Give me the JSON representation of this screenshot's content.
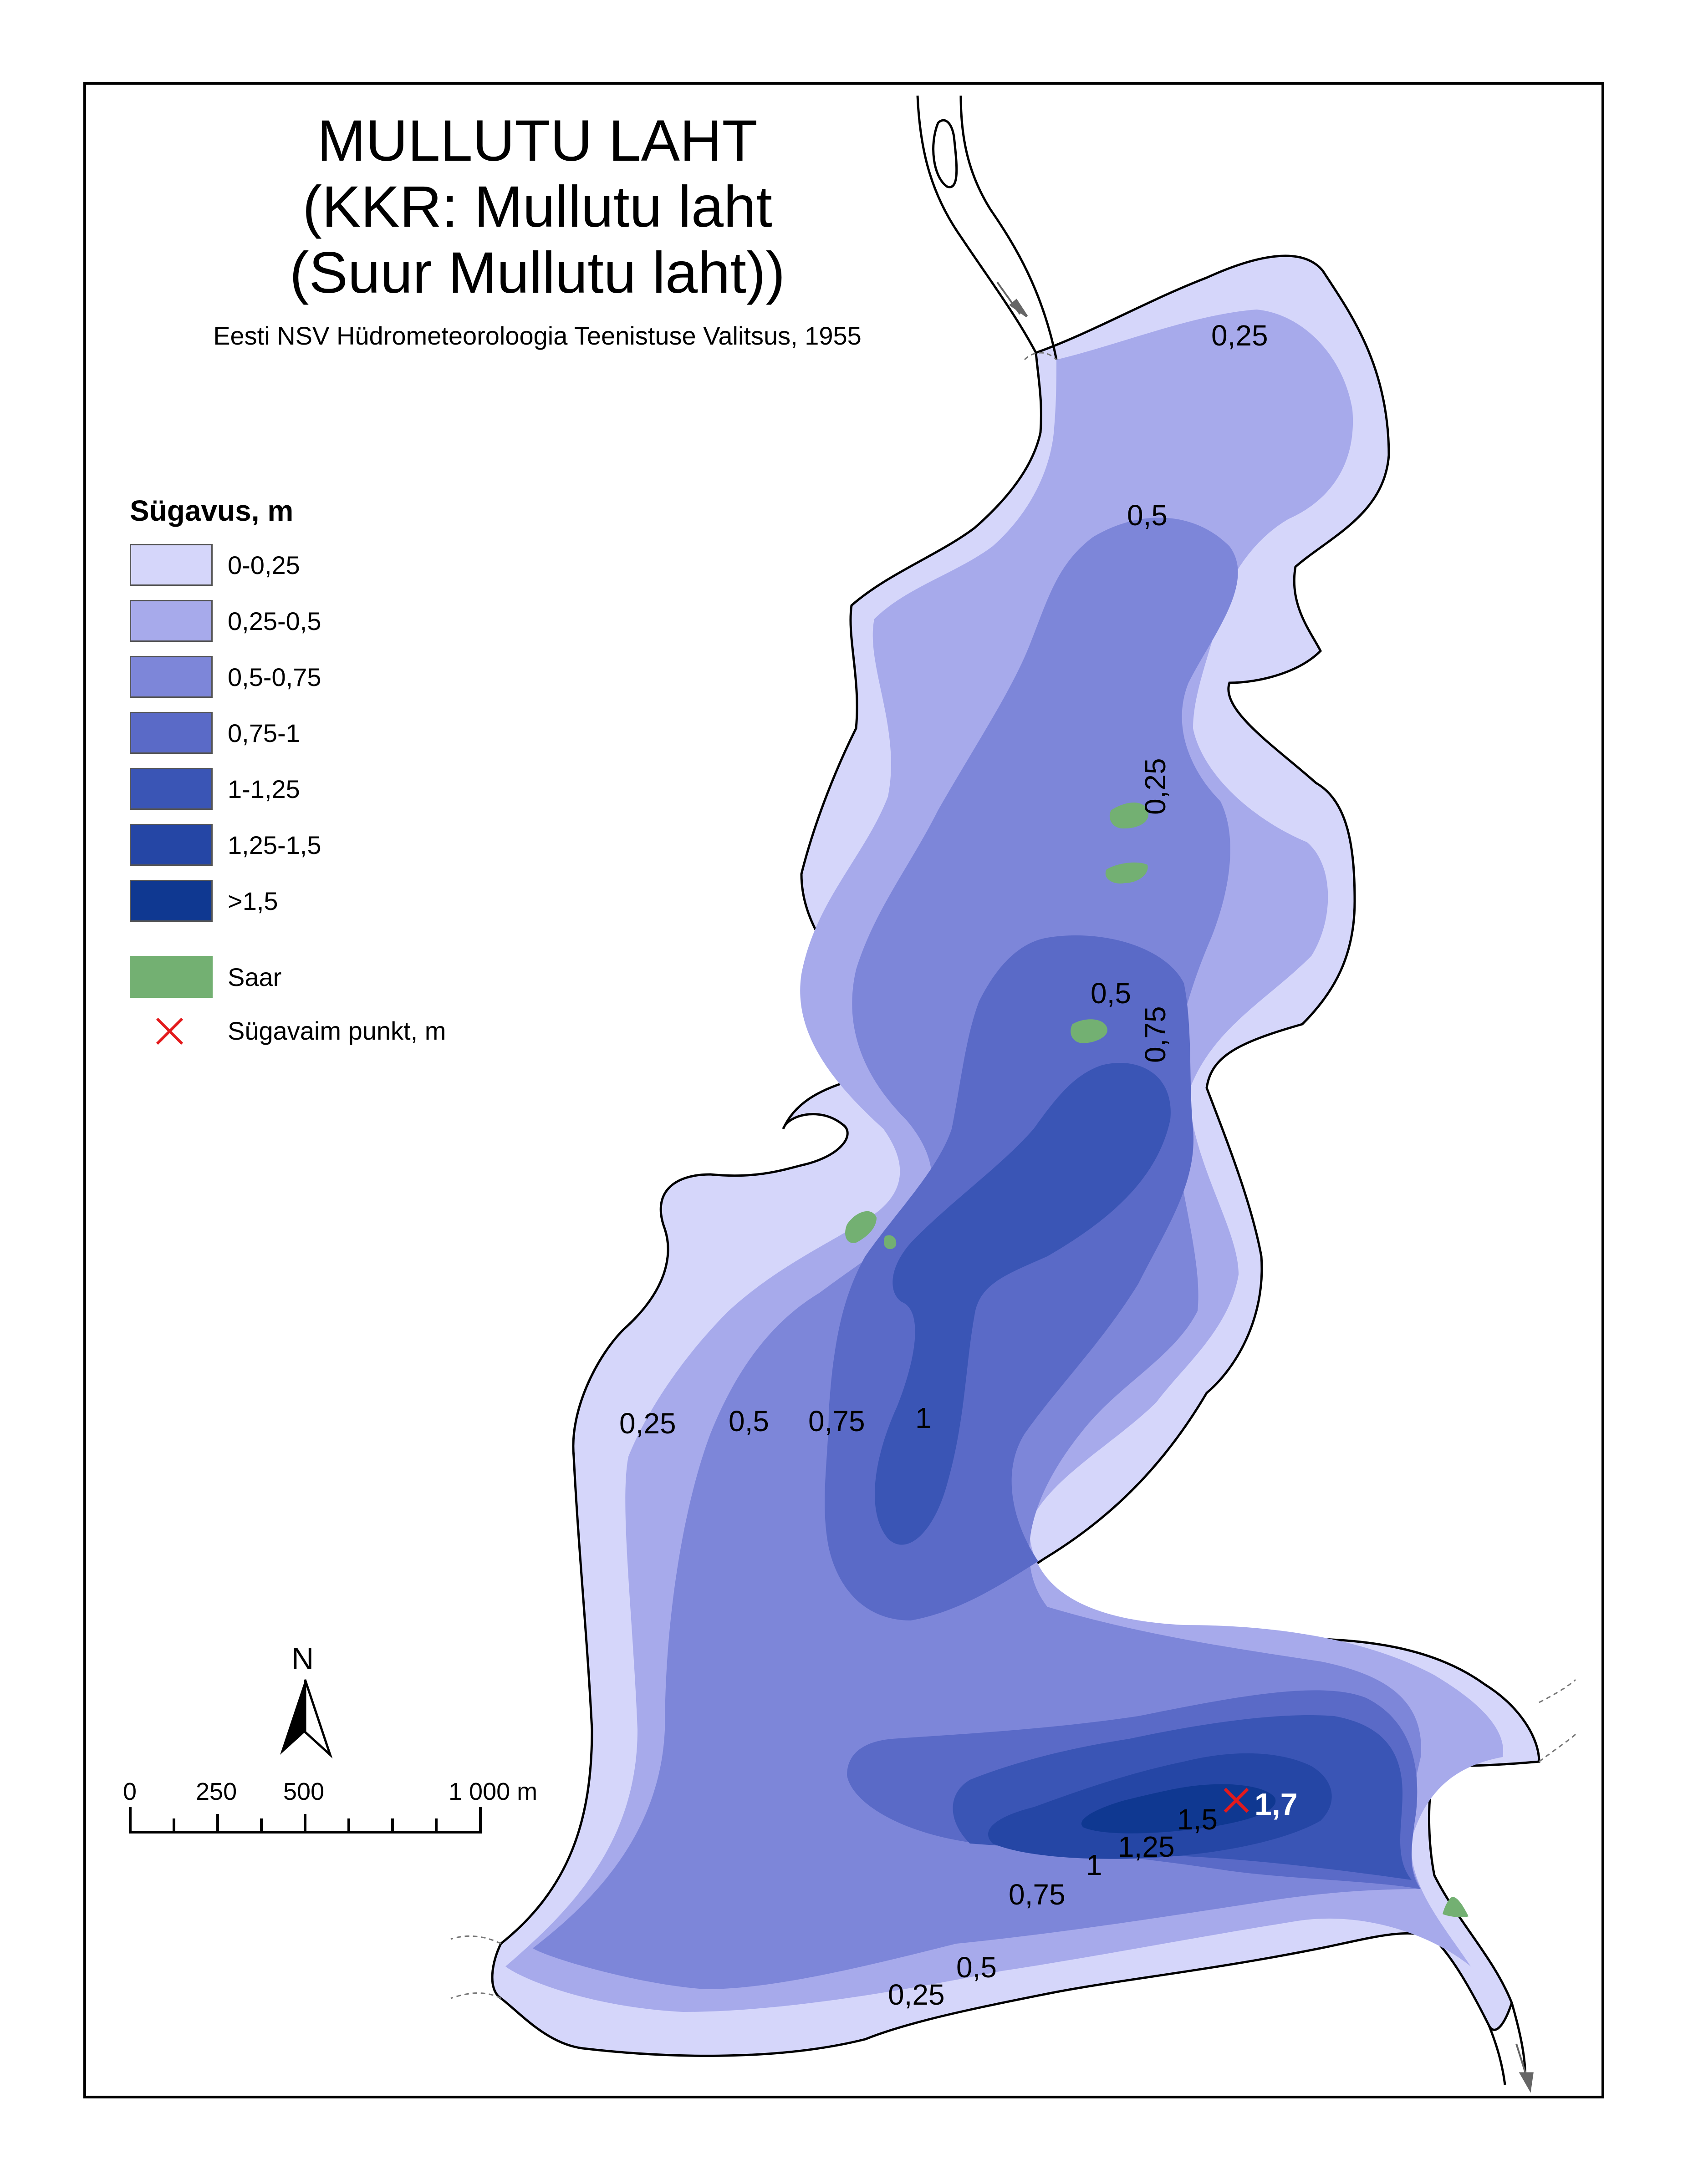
{
  "title": {
    "line1": "MULLUTU LAHT",
    "line2": "(KKR: Mullutu laht",
    "line3": "(Suur Mullutu laht))",
    "subtitle": "Eesti NSV Hüdrometeoroloogia Teenistuse Valitsus, 1955"
  },
  "legend": {
    "title": "Sügavus, m",
    "depth_classes": [
      {
        "label": "0-0,25",
        "color": "#d5d6fa"
      },
      {
        "label": "0,25-0,5",
        "color": "#a7aaeb"
      },
      {
        "label": "0,5-0,75",
        "color": "#7d86d9"
      },
      {
        "label": "0,75-1",
        "color": "#5a6ac7"
      },
      {
        "label": "1-1,25",
        "color": "#3a55b5"
      },
      {
        "label": "1,25-1,5",
        "color": "#2546a5"
      },
      {
        "label": ">1,5",
        "color": "#0f3891"
      }
    ],
    "island": {
      "label": "Saar",
      "color": "#73b072"
    },
    "deepest": {
      "label": "Sügavaim punkt, m",
      "color": "#e31a1c"
    }
  },
  "contour_labels": [
    {
      "id": "n025",
      "text": "0,25"
    },
    {
      "id": "n05",
      "text": "0,5"
    },
    {
      "id": "isl025",
      "text": "0,25"
    },
    {
      "id": "isl05",
      "text": "0,5"
    },
    {
      "id": "isl075",
      "text": "0,75"
    },
    {
      "id": "mid025",
      "text": "0,25"
    },
    {
      "id": "mid05",
      "text": "0,5"
    },
    {
      "id": "mid075",
      "text": "0,75"
    },
    {
      "id": "mid1",
      "text": "1"
    },
    {
      "id": "s15",
      "text": "1,5"
    },
    {
      "id": "s125",
      "text": "1,25"
    },
    {
      "id": "s1",
      "text": "1"
    },
    {
      "id": "s075",
      "text": "0,75"
    },
    {
      "id": "s05",
      "text": "0,5"
    },
    {
      "id": "s025",
      "text": "0,25"
    }
  ],
  "deepest_point_value": "1,7",
  "north_arrow": {
    "letter": "N",
    "icon": "north-arrow-icon"
  },
  "scale_bar": {
    "labels": [
      "0",
      "250",
      "500",
      "1 000 m"
    ]
  }
}
